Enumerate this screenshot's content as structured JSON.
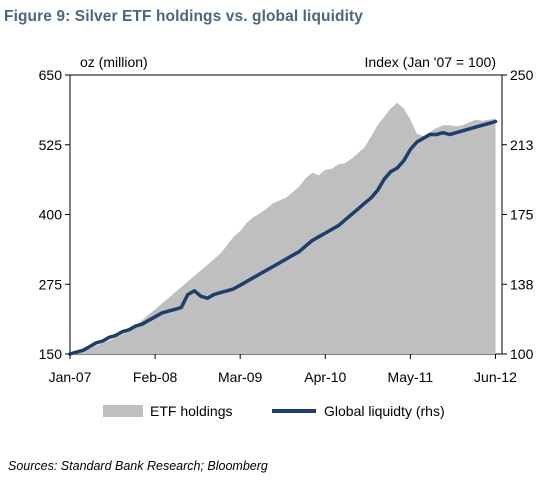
{
  "title": "Figure 9: Silver ETF holdings vs. global liquidity",
  "source": "Sources: Standard Bank Research; Bloomberg",
  "chart_data": {
    "type": "area",
    "y_left_label": "oz (million)",
    "y_right_label": "Index (Jan '07 = 100)",
    "ylim_left": [
      150,
      650
    ],
    "ylim_right": [
      100,
      250
    ],
    "yticks_left": [
      "650",
      "525",
      "400",
      "275",
      "150"
    ],
    "yticks_right": [
      "250",
      "213",
      "175",
      "138",
      "100"
    ],
    "xticks": [
      {
        "label": "Jan-07",
        "t": 0
      },
      {
        "label": "Feb-08",
        "t": 13
      },
      {
        "label": "Mar-09",
        "t": 26
      },
      {
        "label": "Apr-10",
        "t": 39
      },
      {
        "label": "May-11",
        "t": 52
      },
      {
        "label": "Jun-12",
        "t": 65
      }
    ],
    "x_range_months": [
      0,
      66
    ],
    "colors": {
      "area": "#bfbfbf",
      "line": "#1f3e6b",
      "title": "#4a6680"
    },
    "series": [
      {
        "name": "ETF holdings",
        "type": "area",
        "axis": "left",
        "points": [
          [
            0,
            150
          ],
          [
            1,
            152
          ],
          [
            2,
            155
          ],
          [
            3,
            160
          ],
          [
            4,
            165
          ],
          [
            5,
            170
          ],
          [
            6,
            174
          ],
          [
            7,
            180
          ],
          [
            8,
            185
          ],
          [
            9,
            192
          ],
          [
            10,
            200
          ],
          [
            11,
            210
          ],
          [
            12,
            220
          ],
          [
            13,
            230
          ],
          [
            14,
            240
          ],
          [
            15,
            250
          ],
          [
            16,
            260
          ],
          [
            17,
            270
          ],
          [
            18,
            280
          ],
          [
            19,
            290
          ],
          [
            20,
            300
          ],
          [
            21,
            310
          ],
          [
            22,
            320
          ],
          [
            23,
            330
          ],
          [
            24,
            345
          ],
          [
            25,
            360
          ],
          [
            26,
            370
          ],
          [
            27,
            385
          ],
          [
            28,
            395
          ],
          [
            29,
            402
          ],
          [
            30,
            410
          ],
          [
            31,
            420
          ],
          [
            32,
            425
          ],
          [
            33,
            430
          ],
          [
            34,
            440
          ],
          [
            35,
            450
          ],
          [
            36,
            465
          ],
          [
            37,
            475
          ],
          [
            38,
            470
          ],
          [
            39,
            480
          ],
          [
            40,
            482
          ],
          [
            41,
            490
          ],
          [
            42,
            492
          ],
          [
            43,
            500
          ],
          [
            44,
            510
          ],
          [
            45,
            520
          ],
          [
            46,
            540
          ],
          [
            47,
            560
          ],
          [
            48,
            575
          ],
          [
            49,
            590
          ],
          [
            50,
            600
          ],
          [
            51,
            590
          ],
          [
            52,
            570
          ],
          [
            53,
            545
          ],
          [
            54,
            540
          ],
          [
            55,
            548
          ],
          [
            56,
            555
          ],
          [
            57,
            560
          ],
          [
            58,
            560
          ],
          [
            59,
            558
          ],
          [
            60,
            560
          ],
          [
            61,
            565
          ],
          [
            62,
            570
          ],
          [
            63,
            568
          ],
          [
            64,
            570
          ],
          [
            65,
            572
          ]
        ]
      },
      {
        "name": "Global liquidty (rhs)",
        "type": "line",
        "axis": "right",
        "points": [
          [
            0,
            100
          ],
          [
            1,
            101
          ],
          [
            2,
            102
          ],
          [
            3,
            104
          ],
          [
            4,
            106
          ],
          [
            5,
            107
          ],
          [
            6,
            109
          ],
          [
            7,
            110
          ],
          [
            8,
            112
          ],
          [
            9,
            113
          ],
          [
            10,
            115
          ],
          [
            11,
            116
          ],
          [
            12,
            118
          ],
          [
            13,
            120
          ],
          [
            14,
            122
          ],
          [
            15,
            123
          ],
          [
            16,
            124
          ],
          [
            17,
            125
          ],
          [
            18,
            132
          ],
          [
            19,
            134
          ],
          [
            20,
            131
          ],
          [
            21,
            130
          ],
          [
            22,
            132
          ],
          [
            23,
            133
          ],
          [
            24,
            134
          ],
          [
            25,
            135
          ],
          [
            26,
            137
          ],
          [
            27,
            139
          ],
          [
            28,
            141
          ],
          [
            29,
            143
          ],
          [
            30,
            145
          ],
          [
            31,
            147
          ],
          [
            32,
            149
          ],
          [
            33,
            151
          ],
          [
            34,
            153
          ],
          [
            35,
            155
          ],
          [
            36,
            158
          ],
          [
            37,
            161
          ],
          [
            38,
            163
          ],
          [
            39,
            165
          ],
          [
            40,
            167
          ],
          [
            41,
            169
          ],
          [
            42,
            172
          ],
          [
            43,
            175
          ],
          [
            44,
            178
          ],
          [
            45,
            181
          ],
          [
            46,
            184
          ],
          [
            47,
            188
          ],
          [
            48,
            194
          ],
          [
            49,
            198
          ],
          [
            50,
            200
          ],
          [
            51,
            204
          ],
          [
            52,
            210
          ],
          [
            53,
            214
          ],
          [
            54,
            216
          ],
          [
            55,
            218
          ],
          [
            56,
            218
          ],
          [
            57,
            219
          ],
          [
            58,
            218
          ],
          [
            59,
            219
          ],
          [
            60,
            220
          ],
          [
            61,
            221
          ],
          [
            62,
            222
          ],
          [
            63,
            223
          ],
          [
            64,
            224
          ],
          [
            65,
            225
          ]
        ]
      }
    ]
  }
}
